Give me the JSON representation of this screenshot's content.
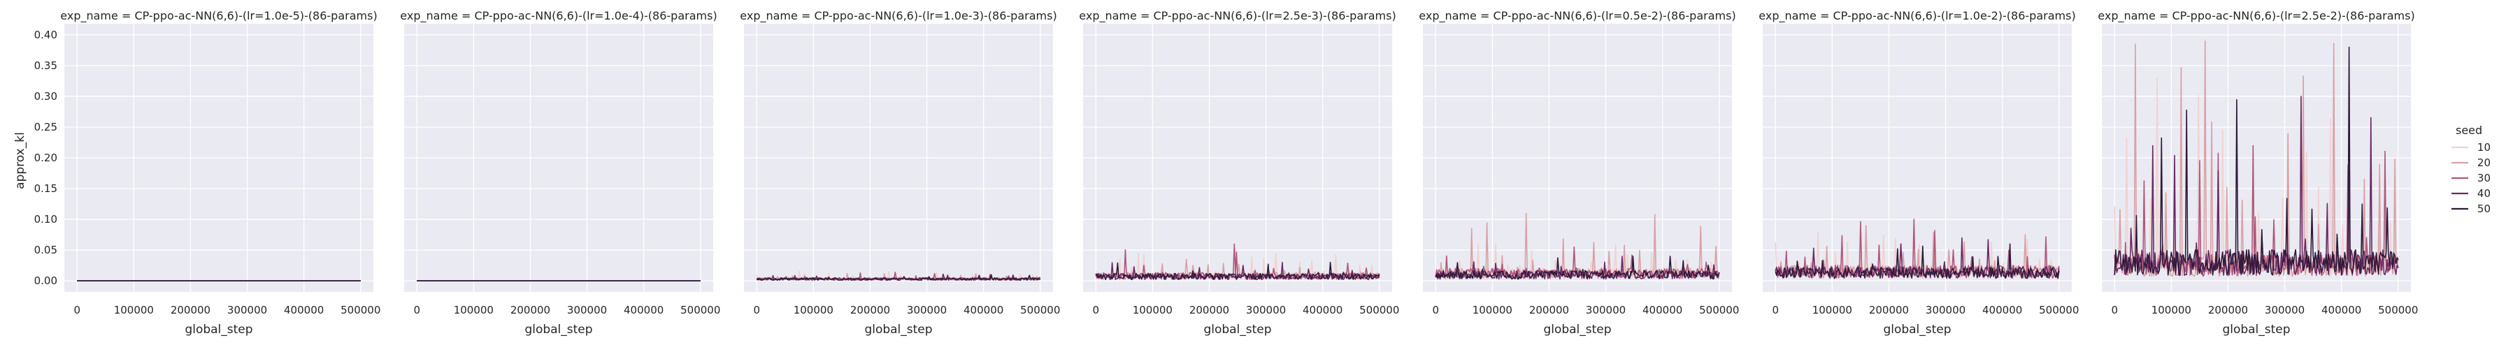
{
  "figure": {
    "ylabel": "approx_kl",
    "xlabel": "global_step",
    "yticks": [
      "0.00",
      "0.05",
      "0.10",
      "0.15",
      "0.20",
      "0.25",
      "0.30",
      "0.35",
      "0.40"
    ],
    "xticks": [
      "0",
      "100000",
      "200000",
      "300000",
      "400000",
      "500000"
    ]
  },
  "legend": {
    "title": "seed",
    "entries": [
      {
        "label": "10",
        "color": "#f0d2d0"
      },
      {
        "label": "20",
        "color": "#d9a0a6"
      },
      {
        "label": "30",
        "color": "#b0577a"
      },
      {
        "label": "40",
        "color": "#6b2a64"
      },
      {
        "label": "50",
        "color": "#2d1a38"
      }
    ]
  },
  "colors": {
    "panel_bg": "#eaeaf2",
    "grid": "#ffffff",
    "text": "#262626"
  },
  "chart_data": [
    {
      "type": "line",
      "title": "exp_name = CP-ppo-ac-NN(6,6)-(lr=1.0e-5)-(86-params)",
      "xlabel": "global_step",
      "ylabel": "approx_kl",
      "xlim": [
        0,
        500000
      ],
      "ylim": [
        0,
        0.4
      ],
      "series_summary": [
        {
          "name": "10",
          "typical": 0.0,
          "peak": 0.0
        },
        {
          "name": "20",
          "typical": 0.0,
          "peak": 0.0
        },
        {
          "name": "30",
          "typical": 0.0,
          "peak": 0.0
        },
        {
          "name": "40",
          "typical": 0.0,
          "peak": 0.0
        },
        {
          "name": "50",
          "typical": 0.0,
          "peak": 0.0
        }
      ]
    },
    {
      "type": "line",
      "title": "exp_name = CP-ppo-ac-NN(6,6)-(lr=1.0e-4)-(86-params)",
      "xlabel": "global_step",
      "ylabel": "",
      "xlim": [
        0,
        500000
      ],
      "ylim": [
        0,
        0.4
      ],
      "series_summary": [
        {
          "name": "10",
          "typical": 0.0,
          "peak": 0.0
        },
        {
          "name": "20",
          "typical": 0.0,
          "peak": 0.0
        },
        {
          "name": "30",
          "typical": 0.0,
          "peak": 0.0
        },
        {
          "name": "40",
          "typical": 0.0,
          "peak": 0.0
        },
        {
          "name": "50",
          "typical": 0.0,
          "peak": 0.0
        }
      ]
    },
    {
      "type": "line",
      "title": "exp_name = CP-ppo-ac-NN(6,6)-(lr=1.0e-3)-(86-params)",
      "xlabel": "global_step",
      "ylabel": "",
      "xlim": [
        0,
        500000
      ],
      "ylim": [
        0,
        0.4
      ],
      "series_summary": [
        {
          "name": "10",
          "typical": 0.003,
          "peak": 0.015
        },
        {
          "name": "20",
          "typical": 0.003,
          "peak": 0.012
        },
        {
          "name": "30",
          "typical": 0.003,
          "peak": 0.014
        },
        {
          "name": "40",
          "typical": 0.003,
          "peak": 0.011
        },
        {
          "name": "50",
          "typical": 0.003,
          "peak": 0.01
        }
      ]
    },
    {
      "type": "line",
      "title": "exp_name = CP-ppo-ac-NN(6,6)-(lr=2.5e-3)-(86-params)",
      "xlabel": "global_step",
      "ylabel": "",
      "xlim": [
        0,
        500000
      ],
      "ylim": [
        0,
        0.4
      ],
      "series_summary": [
        {
          "name": "10",
          "typical": 0.008,
          "peak": 0.045
        },
        {
          "name": "20",
          "typical": 0.008,
          "peak": 0.035
        },
        {
          "name": "30",
          "typical": 0.008,
          "peak": 0.06
        },
        {
          "name": "40",
          "typical": 0.007,
          "peak": 0.03
        },
        {
          "name": "50",
          "typical": 0.007,
          "peak": 0.03
        }
      ]
    },
    {
      "type": "line",
      "title": "exp_name = CP-ppo-ac-NN(6,6)-(lr=0.5e-2)-(86-params)",
      "xlabel": "global_step",
      "ylabel": "",
      "xlim": [
        0,
        500000
      ],
      "ylim": [
        0,
        0.4
      ],
      "series_summary": [
        {
          "name": "10",
          "typical": 0.012,
          "peak": 0.06
        },
        {
          "name": "20",
          "typical": 0.012,
          "peak": 0.11
        },
        {
          "name": "30",
          "typical": 0.012,
          "peak": 0.055
        },
        {
          "name": "40",
          "typical": 0.01,
          "peak": 0.04
        },
        {
          "name": "50",
          "typical": 0.01,
          "peak": 0.04
        }
      ]
    },
    {
      "type": "line",
      "title": "exp_name = CP-ppo-ac-NN(6,6)-(lr=1.0e-2)-(86-params)",
      "xlabel": "global_step",
      "ylabel": "",
      "xlim": [
        0,
        500000
      ],
      "ylim": [
        0,
        0.4
      ],
      "series_summary": [
        {
          "name": "10",
          "typical": 0.015,
          "peak": 0.08
        },
        {
          "name": "20",
          "typical": 0.015,
          "peak": 0.09
        },
        {
          "name": "30",
          "typical": 0.015,
          "peak": 0.1
        },
        {
          "name": "40",
          "typical": 0.014,
          "peak": 0.07
        },
        {
          "name": "50",
          "typical": 0.013,
          "peak": 0.06
        }
      ]
    },
    {
      "type": "line",
      "title": "exp_name = CP-ppo-ac-NN(6,6)-(lr=2.5e-2)-(86-params)",
      "xlabel": "global_step",
      "ylabel": "",
      "xlim": [
        0,
        500000
      ],
      "ylim": [
        0,
        0.4
      ],
      "series_summary": [
        {
          "name": "10",
          "typical": 0.025,
          "peak": 0.33
        },
        {
          "name": "20",
          "typical": 0.025,
          "peak": 0.39
        },
        {
          "name": "30",
          "typical": 0.025,
          "peak": 0.22
        },
        {
          "name": "40",
          "typical": 0.03,
          "peak": 0.3
        },
        {
          "name": "50",
          "typical": 0.03,
          "peak": 0.38
        }
      ]
    }
  ]
}
